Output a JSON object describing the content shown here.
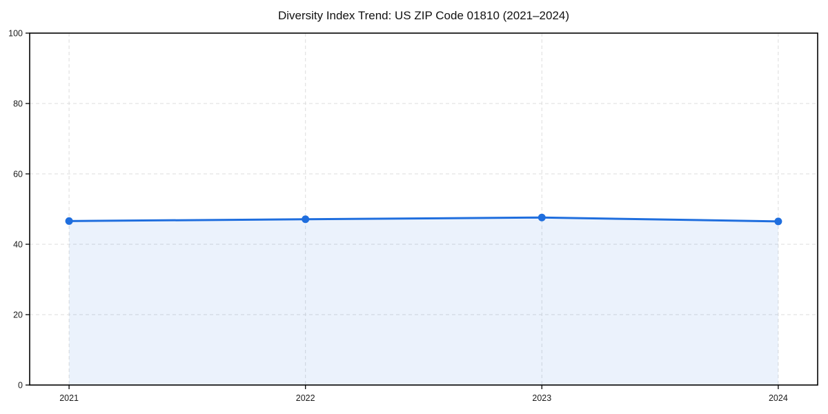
{
  "chart_data": {
    "type": "area",
    "title": "Diversity Index Trend: US ZIP Code 01810 (2021–2024)",
    "x": [
      2021,
      2022,
      2023,
      2024
    ],
    "categories": [
      "2021",
      "2022",
      "2023",
      "2024"
    ],
    "series": [
      {
        "name": "Diversity Index",
        "values": [
          46.6,
          47.1,
          47.6,
          46.5
        ]
      }
    ],
    "xlabel": "",
    "ylabel": "",
    "ylim": [
      0,
      100
    ],
    "yticks": [
      0,
      20,
      40,
      60,
      80,
      100
    ],
    "grid": "dashed both axes",
    "legend": "none",
    "colors": {
      "line": "#1f6ede",
      "marker": "#1f6ede",
      "area_fill": "rgba(31,110,222,0.09)",
      "gridline": "#dcdcdc",
      "spine": "#000000",
      "tick_label": "#1a1a1a",
      "background": "#ffffff"
    },
    "style": {
      "line_width": 3,
      "marker_radius": 5.5,
      "area_baseline": 0
    }
  }
}
